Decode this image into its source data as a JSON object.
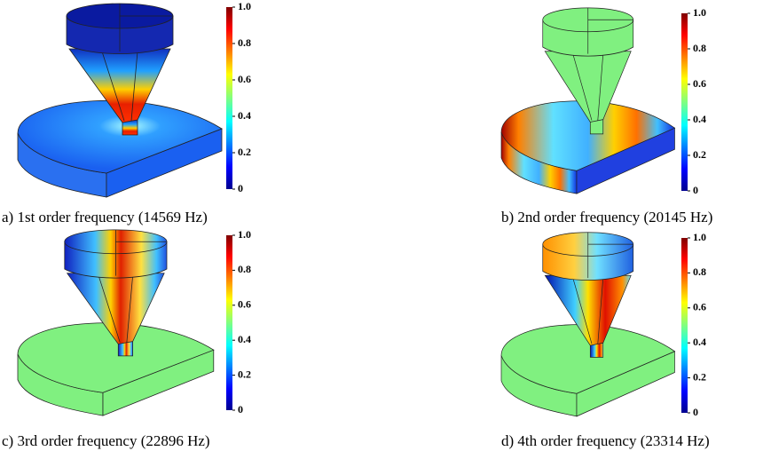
{
  "panels": [
    {
      "caption": "a) 1st order frequency (14569 Hz)",
      "colorbar_ticks": [
        "1.0",
        "0.8",
        "0.6",
        "0.4",
        "0.2",
        "0"
      ]
    },
    {
      "caption": "b) 2nd order frequency (20145 Hz)",
      "colorbar_ticks": [
        "1.0",
        "0.8",
        "0.6",
        "0.4",
        "0.2",
        "0"
      ]
    },
    {
      "caption": "c) 3rd order frequency (22896 Hz)",
      "colorbar_ticks": [
        "1.0",
        "0.8",
        "0.6",
        "0.4",
        "0.2",
        "0"
      ]
    },
    {
      "caption": "d) 4th order frequency (23314 Hz)",
      "colorbar_ticks": [
        "1.0",
        "0.8",
        "0.6",
        "0.4",
        "0.2",
        "0"
      ]
    }
  ]
}
